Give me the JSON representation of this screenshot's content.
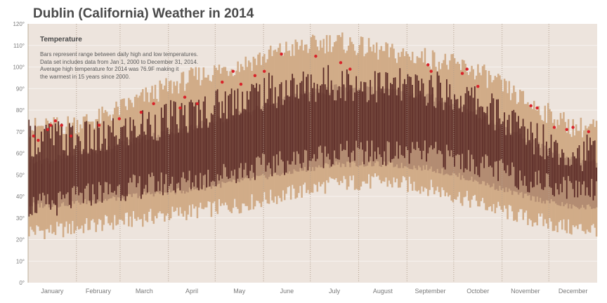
{
  "title": "Dublin (California) Weather in 2014",
  "legend": {
    "title": "Temperature",
    "notes": [
      "Bars represent range between daily high and low temperatures.",
      "Data set includes data from Jan 1, 2000 to December 31, 2014.",
      "Average high temperature for 2014 was 76.9F making it",
      "the warmest in 15 years since 2000."
    ]
  },
  "colors": {
    "background": "#ede4dd",
    "record_range": "#d1ac88",
    "normal_range": "#b38c72",
    "daily_2014": "#5a2a26",
    "record_high_marker": "#d8232a",
    "month_divider": "#b3a190",
    "grid": "#ffffff",
    "axis_text": "#7a7a7a"
  },
  "chart_data": {
    "type": "bar",
    "title": "Dublin (California) Weather in 2014",
    "ylabel": "Temperature",
    "ylim": [
      0,
      120
    ],
    "y_ticks": [
      "0°",
      "10°",
      "20°",
      "30°",
      "40°",
      "50°",
      "60°",
      "70°",
      "80°",
      "90°",
      "100°",
      "110°",
      "120°"
    ],
    "months": [
      "January",
      "February",
      "March",
      "April",
      "May",
      "June",
      "July",
      "August",
      "September",
      "October",
      "November",
      "December"
    ],
    "grid": true,
    "record_range_monthly": [
      {
        "month": "January",
        "low": 24,
        "high": 72
      },
      {
        "month": "February",
        "low": 27,
        "high": 76
      },
      {
        "month": "March",
        "low": 30,
        "high": 86
      },
      {
        "month": "April",
        "low": 33,
        "high": 95
      },
      {
        "month": "May",
        "low": 36,
        "high": 101
      },
      {
        "month": "June",
        "low": 41,
        "high": 108
      },
      {
        "month": "July",
        "low": 46,
        "high": 112
      },
      {
        "month": "August",
        "low": 47,
        "high": 107
      },
      {
        "month": "September",
        "low": 44,
        "high": 104
      },
      {
        "month": "October",
        "low": 37,
        "high": 98
      },
      {
        "month": "November",
        "low": 30,
        "high": 84
      },
      {
        "month": "December",
        "low": 25,
        "high": 72
      }
    ],
    "normal_range_monthly": [
      {
        "month": "January",
        "low": 36,
        "high": 57
      },
      {
        "month": "February",
        "low": 38,
        "high": 61
      },
      {
        "month": "March",
        "low": 41,
        "high": 67
      },
      {
        "month": "April",
        "low": 43,
        "high": 72
      },
      {
        "month": "May",
        "low": 47,
        "high": 78
      },
      {
        "month": "June",
        "low": 51,
        "high": 85
      },
      {
        "month": "July",
        "low": 55,
        "high": 90
      },
      {
        "month": "August",
        "low": 55,
        "high": 89
      },
      {
        "month": "September",
        "low": 53,
        "high": 86
      },
      {
        "month": "October",
        "low": 47,
        "high": 78
      },
      {
        "month": "November",
        "low": 40,
        "high": 66
      },
      {
        "month": "December",
        "low": 35,
        "high": 57
      }
    ],
    "daily_2014_monthly": [
      {
        "month": "January",
        "low": 36,
        "high": 67
      },
      {
        "month": "February",
        "low": 42,
        "high": 66
      },
      {
        "month": "March",
        "low": 45,
        "high": 73
      },
      {
        "month": "April",
        "low": 47,
        "high": 78
      },
      {
        "month": "May",
        "low": 52,
        "high": 86
      },
      {
        "month": "June",
        "low": 56,
        "high": 90
      },
      {
        "month": "July",
        "low": 60,
        "high": 93
      },
      {
        "month": "August",
        "low": 60,
        "high": 91
      },
      {
        "month": "September",
        "low": 60,
        "high": 90
      },
      {
        "month": "October",
        "low": 55,
        "high": 84
      },
      {
        "month": "November",
        "low": 48,
        "high": 70
      },
      {
        "month": "December",
        "low": 44,
        "high": 60
      }
    ],
    "record_highs_2014": [
      {
        "day": 3,
        "value": 68
      },
      {
        "day": 6,
        "value": 66
      },
      {
        "day": 12,
        "value": 71
      },
      {
        "day": 14,
        "value": 73
      },
      {
        "day": 17,
        "value": 75
      },
      {
        "day": 21,
        "value": 73
      },
      {
        "day": 27,
        "value": 68
      },
      {
        "day": 45,
        "value": 73
      },
      {
        "day": 58,
        "value": 76
      },
      {
        "day": 72,
        "value": 79
      },
      {
        "day": 80,
        "value": 83
      },
      {
        "day": 97,
        "value": 81
      },
      {
        "day": 100,
        "value": 86
      },
      {
        "day": 108,
        "value": 83
      },
      {
        "day": 124,
        "value": 93
      },
      {
        "day": 131,
        "value": 98
      },
      {
        "day": 136,
        "value": 92
      },
      {
        "day": 145,
        "value": 96
      },
      {
        "day": 151,
        "value": 98
      },
      {
        "day": 162,
        "value": 106
      },
      {
        "day": 184,
        "value": 105
      },
      {
        "day": 200,
        "value": 102
      },
      {
        "day": 206,
        "value": 99
      },
      {
        "day": 256,
        "value": 101
      },
      {
        "day": 258,
        "value": 98
      },
      {
        "day": 278,
        "value": 97
      },
      {
        "day": 281,
        "value": 99
      },
      {
        "day": 288,
        "value": 91
      },
      {
        "day": 322,
        "value": 82
      },
      {
        "day": 326,
        "value": 81
      },
      {
        "day": 337,
        "value": 72
      },
      {
        "day": 345,
        "value": 71
      },
      {
        "day": 349,
        "value": 72
      },
      {
        "day": 359,
        "value": 70
      }
    ]
  }
}
